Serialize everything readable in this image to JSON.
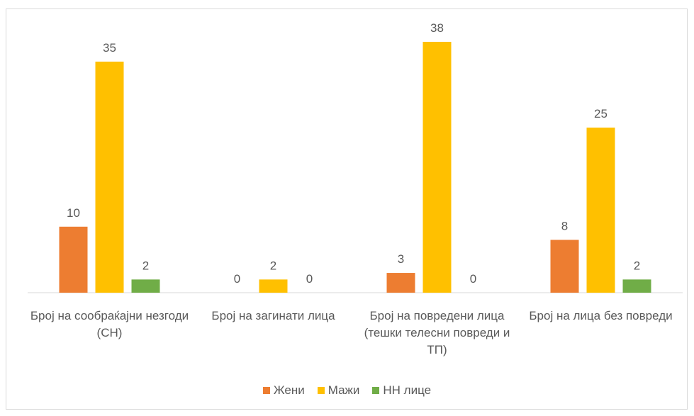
{
  "chart_data": {
    "type": "bar",
    "categories": [
      "Број на сообраќајни незгоди (СН)",
      "Број на загинати лица",
      "Број на повредени лица (тешки телесни повреди и ТП)",
      "Број на лица без повреди"
    ],
    "series": [
      {
        "name": "Жени",
        "color": "#ed7d31",
        "values": [
          10,
          0,
          3,
          8
        ]
      },
      {
        "name": "Мажи",
        "color": "#ffc000",
        "values": [
          35,
          2,
          38,
          25
        ]
      },
      {
        "name": "НН лице",
        "color": "#70ad47",
        "values": [
          2,
          0,
          0,
          2
        ]
      }
    ],
    "legend": "bottom"
  }
}
